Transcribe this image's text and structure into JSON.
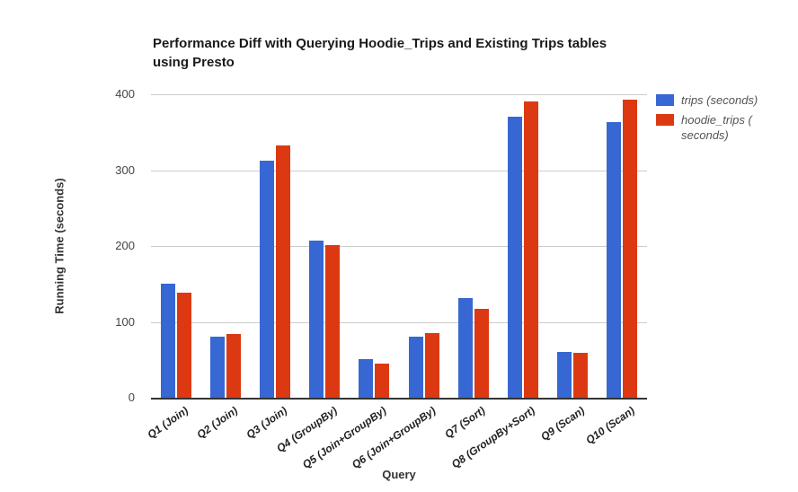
{
  "chart_data": {
    "type": "bar",
    "title": "Performance Diff with Querying Hoodie_Trips and Existing Trips tables using Presto",
    "title_lines": [
      "Performance Diff with Querying Hoodie_Trips and Existing Trips tables",
      "using Presto"
    ],
    "xlabel": "Query",
    "ylabel": "Running Time (seconds)",
    "ylim": [
      0,
      400
    ],
    "yticks": [
      0,
      100,
      200,
      300,
      400
    ],
    "ytick_labels": [
      "0",
      "100",
      "200",
      "300",
      "400"
    ],
    "grid": true,
    "legend_position": "top-right",
    "background_color": "#ffffff",
    "axis_color": "#333333",
    "gridline_color": "#cccccc",
    "categories": [
      "Q1 (Join)",
      "Q2 (Join)",
      "Q3 (Join)",
      "Q4 (GroupBy)",
      "Q5 (Join+GroupBy)",
      "Q6 (Join+GroupBy)",
      "Q7 (Sort)",
      "Q8 (GroupBy+Sort)",
      "Q9 (Scan)",
      "Q10 (Scan)"
    ],
    "series": [
      {
        "name": "trips (seconds)",
        "legend_lines": [
          "trips (seconds)"
        ],
        "color": "#3767D3",
        "values": [
          150,
          80,
          313,
          207,
          51,
          81,
          131,
          371,
          60,
          363
        ]
      },
      {
        "name": "hoodie_trips (seconds)",
        "legend_lines": [
          "hoodie_trips (",
          "seconds)"
        ],
        "color": "#DC3912",
        "values": [
          138,
          84,
          332,
          201,
          45,
          85,
          117,
          390,
          59,
          393
        ]
      }
    ]
  }
}
